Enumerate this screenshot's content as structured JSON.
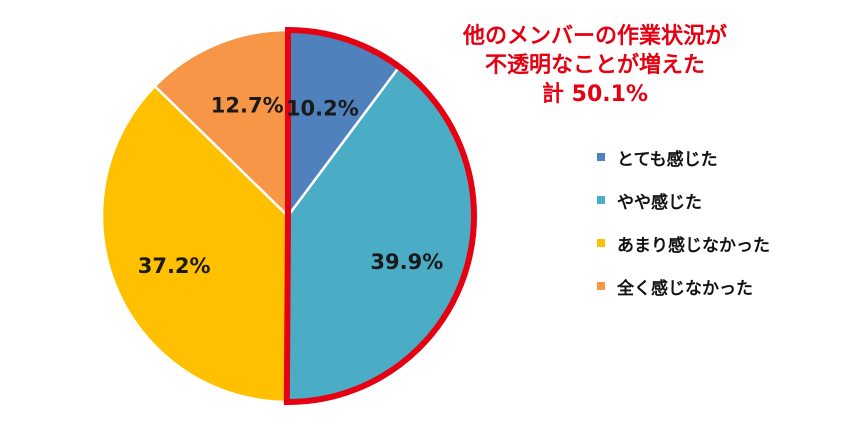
{
  "chart_data": {
    "type": "pie",
    "categories": [
      "とても感じた",
      "やや感じた",
      "あまり感じなかった",
      "全く感じなかった"
    ],
    "values": [
      10.2,
      39.9,
      37.2,
      12.7
    ],
    "value_labels": [
      "10.2%",
      "39.9%",
      "37.2%",
      "12.7%"
    ],
    "colors": [
      "#4f81bd",
      "#4bacc6",
      "#ffc000",
      "#f79646"
    ],
    "highlight_color": "#e60012",
    "highlighted_slices": [
      0,
      1
    ],
    "legend_placement": "right",
    "annotation": {
      "lines": [
        "他のメンバーの作業状況が",
        "不透明なことが増えた",
        "計 50.1%"
      ]
    }
  }
}
